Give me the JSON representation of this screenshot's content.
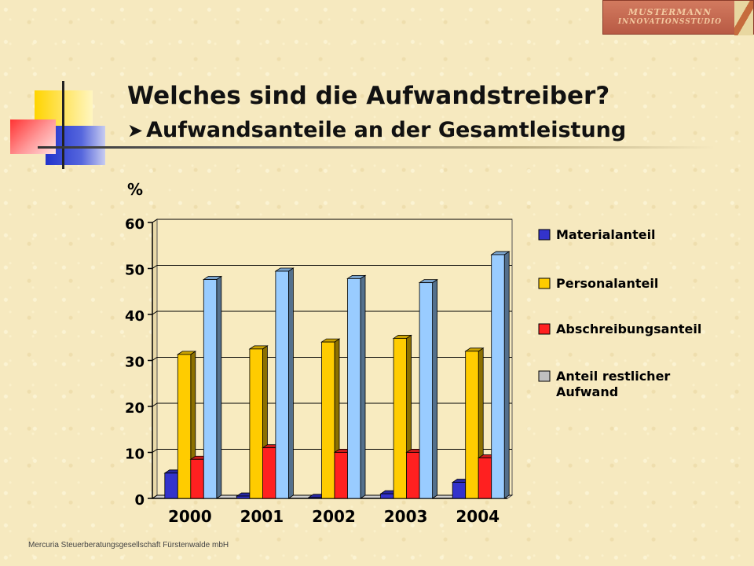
{
  "slide": {
    "title": "Welches sind die Aufwandstreiber?",
    "subtitle": "Aufwandsanteile an der Gesamtleistung",
    "subtitle_marker": "➤",
    "footer": "Mercuria Steuerberatungsgesellschaft Fürstenwalde mbH",
    "logo_line1": "MUSTERMANN",
    "logo_line2": "INNOVATIONSSTUDIO"
  },
  "colors": {
    "material": "#3333cc",
    "personal": "#ffcc00",
    "abschreibung": "#ff2020",
    "restlich": "#99ccff",
    "restlich_legend": "#c0c0c0",
    "plot_bg": "#f8ebc0",
    "gridline": "#000000"
  },
  "chart_data": {
    "type": "bar",
    "ylabel": "%",
    "ylim": [
      0,
      60
    ],
    "yticks": [
      0,
      10,
      20,
      30,
      40,
      50,
      60
    ],
    "categories": [
      "2000",
      "2001",
      "2002",
      "2003",
      "2004"
    ],
    "grid": true,
    "legend": "right",
    "series": [
      {
        "name": "Materialanteil",
        "values": [
          5.5,
          0.5,
          0.2,
          1.0,
          3.5
        ]
      },
      {
        "name": "Personalanteil",
        "values": [
          31.3,
          32.5,
          34.0,
          34.8,
          32.0
        ]
      },
      {
        "name": "Abschreibungsanteil",
        "values": [
          8.5,
          11.0,
          10.0,
          10.0,
          8.8
        ]
      },
      {
        "name": "Anteil restlicher Aufwand",
        "values": [
          47.6,
          49.4,
          47.8,
          46.9,
          53.0
        ]
      }
    ]
  }
}
